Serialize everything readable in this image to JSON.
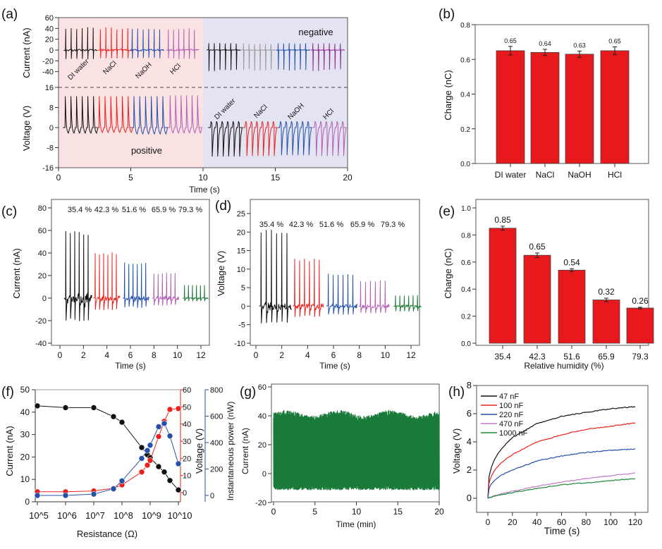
{
  "panel_labels": [
    "(a)",
    "(b)",
    "(c)",
    "(d)",
    "(e)",
    "(f)",
    "(g)",
    "(h)"
  ],
  "chart_data": [
    {
      "id": "a",
      "type": "line",
      "xlabel": "Time (s)",
      "xlim": [
        0,
        20
      ],
      "xticks": [
        0,
        5,
        10,
        15,
        20
      ],
      "top": {
        "ylabel": "Current (nA)",
        "yticks": [
          60,
          40,
          20,
          0,
          -20,
          -40
        ]
      },
      "bottom": {
        "ylabel": "Voltage (V)",
        "yticks": [
          16,
          8,
          0,
          -8,
          -16
        ]
      },
      "region_labels": {
        "positive": "positive",
        "negative": "negative"
      },
      "region_colors": {
        "positive": "#fbe3e4",
        "negative": "#e3e3f1"
      },
      "annotations": [
        "DI water",
        "NaCl",
        "NaOH",
        "HCl"
      ],
      "current_groups": [
        {
          "label": "DI water",
          "color": "#111111",
          "t": [
            0.5,
            2.4
          ],
          "peak": 43,
          "trough": -17,
          "mode": "pos"
        },
        {
          "label": "NaCl",
          "color": "#e8231f",
          "t": [
            2.9,
            4.8
          ],
          "peak": 42,
          "trough": -16,
          "mode": "pos"
        },
        {
          "label": "NaOH",
          "color": "#2450a8",
          "t": [
            5.1,
            7.0
          ],
          "peak": 41,
          "trough": -16,
          "mode": "pos"
        },
        {
          "label": "HCl",
          "color": "#b25fb5",
          "t": [
            7.6,
            9.4
          ],
          "peak": 41,
          "trough": -17,
          "mode": "pos"
        },
        {
          "label": "DI water",
          "color": "#111111",
          "t": [
            10.4,
            12.3
          ],
          "peak": 13,
          "trough": -40,
          "mode": "neg"
        },
        {
          "label": "NaCl",
          "color": "#999999",
          "t": [
            12.8,
            14.7
          ],
          "peak": 12,
          "trough": -39,
          "mode": "neg"
        },
        {
          "label": "NaOH",
          "color": "#2450a8",
          "t": [
            15.2,
            17.1
          ],
          "peak": 13,
          "trough": -39,
          "mode": "neg"
        },
        {
          "label": "HCl",
          "color": "#8b2a8f",
          "t": [
            17.6,
            19.5
          ],
          "peak": 13,
          "trough": -39,
          "mode": "neg"
        }
      ],
      "voltage_groups": [
        {
          "label": "DI water",
          "color": "#111111",
          "t": [
            0.45,
            2.4
          ],
          "peak": 12.5,
          "trough": -2.5,
          "mode": "pos"
        },
        {
          "label": "NaCl",
          "color": "#e8231f",
          "t": [
            2.8,
            4.8
          ],
          "peak": 12.5,
          "trough": -2.2,
          "mode": "pos"
        },
        {
          "label": "NaOH",
          "color": "#2450a8",
          "t": [
            5.2,
            7.2
          ],
          "peak": 12.5,
          "trough": -2.8,
          "mode": "pos"
        },
        {
          "label": "HCl",
          "color": "#b25fb5",
          "t": [
            7.7,
            9.6
          ],
          "peak": 12.8,
          "trough": -2.4,
          "mode": "pos"
        },
        {
          "label": "DI water",
          "color": "#111111",
          "t": [
            10.5,
            12.4
          ],
          "peak": 2.5,
          "trough": -11.5,
          "mode": "neg"
        },
        {
          "label": "NaCl",
          "color": "#e8231f",
          "t": [
            12.9,
            14.8
          ],
          "peak": 2.5,
          "trough": -11.3,
          "mode": "neg"
        },
        {
          "label": "NaOH",
          "color": "#2450a8",
          "t": [
            15.3,
            17.2
          ],
          "peak": 2.5,
          "trough": -11,
          "mode": "neg"
        },
        {
          "label": "HCl",
          "color": "#b25fb5",
          "t": [
            17.7,
            19.6
          ],
          "peak": 2.5,
          "trough": -11.3,
          "mode": "neg"
        }
      ]
    },
    {
      "id": "b",
      "type": "bar",
      "ylabel": "Charge (nC)",
      "ylim": [
        0,
        0.8
      ],
      "yticks": [
        "0.0",
        "0.2",
        "0.4",
        "0.6",
        "0.8"
      ],
      "categories": [
        "DI water",
        "NaCl",
        "NaOH",
        "HCl"
      ],
      "values": [
        0.65,
        0.64,
        0.63,
        0.65
      ],
      "errors": [
        0.025,
        0.018,
        0.018,
        0.022
      ],
      "data_labels": [
        "0.65",
        "0.64",
        "0.63",
        "0.65"
      ],
      "color": "#e8191d"
    },
    {
      "id": "c",
      "type": "line",
      "xlabel": "Time (s)",
      "ylabel": "Current (nA)",
      "xticks": [
        0,
        2,
        4,
        6,
        8,
        10,
        12
      ],
      "yticks": [
        -40,
        -20,
        0,
        20,
        40,
        60,
        80
      ],
      "groups": [
        {
          "label": "35.4 %",
          "color": "#111111",
          "t": [
            0.5,
            2.4
          ],
          "peak": 60,
          "trough": -22
        },
        {
          "label": "42.3 %",
          "color": "#e8231f",
          "t": [
            3.0,
            4.8
          ],
          "peak": 41,
          "trough": -11
        },
        {
          "label": "51.6 %",
          "color": "#2450a8",
          "t": [
            5.5,
            7.3
          ],
          "peak": 32,
          "trough": -9
        },
        {
          "label": "65.9 %",
          "color": "#b25fb5",
          "t": [
            8.0,
            9.8
          ],
          "peak": 23,
          "trough": -7
        },
        {
          "label": "79.3 %",
          "color": "#1f7a35",
          "t": [
            10.6,
            12.3
          ],
          "peak": 12,
          "trough": -3
        }
      ]
    },
    {
      "id": "d",
      "type": "line",
      "xlabel": "Time (s)",
      "ylabel": "Voltage (V)",
      "xticks": [
        0,
        2,
        4,
        6,
        8,
        10,
        12
      ],
      "yticks": [
        -10,
        -5,
        0,
        5,
        10,
        15,
        20,
        25
      ],
      "groups": [
        {
          "label": "35.4 %",
          "color": "#111111",
          "t": [
            0.4,
            2.4
          ],
          "peak": 21,
          "trough": -5
        },
        {
          "label": "42.3 %",
          "color": "#e8231f",
          "t": [
            3.0,
            4.9
          ],
          "peak": 13,
          "trough": -3
        },
        {
          "label": "51.6 %",
          "color": "#2450a8",
          "t": [
            5.6,
            7.5
          ],
          "peak": 9,
          "trough": -2.5
        },
        {
          "label": "65.9 %",
          "color": "#b25fb5",
          "t": [
            8.1,
            10.0
          ],
          "peak": 7,
          "trough": -2
        },
        {
          "label": "79.3 %",
          "color": "#1f7a35",
          "t": [
            10.8,
            12.5
          ],
          "peak": 3,
          "trough": -1.5
        }
      ]
    },
    {
      "id": "e",
      "type": "bar",
      "xlabel": "Relative humidity (%)",
      "ylabel": "Charge (nC)",
      "ylim": [
        0,
        1.0
      ],
      "yticks": [
        "0.0",
        "0.2",
        "0.4",
        "0.6",
        "0.8",
        "1.0"
      ],
      "categories": [
        "35.4",
        "42.3",
        "51.6",
        "65.9",
        "79.3"
      ],
      "values": [
        0.85,
        0.65,
        0.54,
        0.32,
        0.26
      ],
      "errors": [
        0.015,
        0.017,
        0.01,
        0.013,
        0.006
      ],
      "data_labels": [
        "0.85",
        "0.65",
        "0.54",
        "0.32",
        "0.26"
      ],
      "color": "#e8191d"
    },
    {
      "id": "f",
      "type": "scatter",
      "xlabel": "Resistance (Ω)",
      "xscale": "log",
      "xticks": [
        "10^5",
        "10^6",
        "10^7",
        "10^8",
        "10^9",
        "10^10"
      ],
      "ylabels": {
        "current": "Current (nA)",
        "voltage": "Voltage (V)",
        "power": "Instantaneous power (nW)"
      },
      "yticks": {
        "current": [
          0,
          10,
          20,
          30,
          40,
          50
        ],
        "voltage": [
          0,
          10,
          20,
          30,
          40,
          50,
          60
        ],
        "power": [
          0,
          200,
          400,
          600,
          800
        ]
      },
      "log10_resistance": [
        5,
        6,
        7,
        7.7,
        8,
        8.7,
        8.9,
        9,
        9.3,
        9.5,
        9.7,
        10
      ],
      "series": [
        {
          "name": "Current",
          "axis": "current",
          "color": "#111111",
          "values": [
            42.8,
            42,
            42,
            38,
            35.5,
            24.2,
            21,
            19.7,
            15.7,
            13.3,
            9.5,
            5.3
          ]
        },
        {
          "name": "Voltage",
          "axis": "voltage",
          "color": "#e8231f",
          "values": [
            0.5,
            0.5,
            1,
            2.5,
            4.5,
            12,
            16,
            18.8,
            32.7,
            41.6,
            48.5,
            49
          ]
        },
        {
          "name": "Instantaneous power",
          "axis": "power",
          "color": "#2450a8",
          "values": [
            0,
            0,
            10,
            50,
            110,
            280,
            340,
            380,
            520,
            545,
            450,
            240
          ]
        }
      ]
    },
    {
      "id": "g",
      "type": "line",
      "xlabel": "Time (min)",
      "ylabel": "Current (nA)",
      "xlim": [
        0,
        20
      ],
      "xticks": [
        0,
        5,
        10,
        15,
        20
      ],
      "yticks": [
        -20,
        0,
        20,
        40,
        60
      ],
      "color": "#1a7a3a",
      "envelope_upper": 40,
      "envelope_lower": -10
    },
    {
      "id": "h",
      "type": "line",
      "xlabel": "Time (s)",
      "ylabel": "Voltage (V)",
      "xticks": [
        0,
        20,
        40,
        60,
        80,
        100,
        120
      ],
      "yticks": [
        0,
        2,
        4,
        6,
        8
      ],
      "legend": "top-left",
      "x": [
        0,
        20,
        40,
        60,
        80,
        100,
        120
      ],
      "series": [
        {
          "name": "47 nF",
          "color": "#111111",
          "values": [
            0,
            4.3,
            5.3,
            5.8,
            6.1,
            6.35,
            6.5
          ]
        },
        {
          "name": "100 nF",
          "color": "#e8231f",
          "values": [
            0,
            3.1,
            4.0,
            4.5,
            4.9,
            5.1,
            5.35
          ]
        },
        {
          "name": "220 nF",
          "color": "#2450a8",
          "values": [
            0,
            2.0,
            2.65,
            3.0,
            3.25,
            3.4,
            3.5
          ]
        },
        {
          "name": "470 nF",
          "color": "#c07ac6",
          "values": [
            0,
            0.5,
            0.85,
            1.15,
            1.4,
            1.6,
            1.78
          ]
        },
        {
          "name": "1000 nF",
          "color": "#1f8a3a",
          "values": [
            0,
            0.4,
            0.7,
            0.95,
            1.1,
            1.25,
            1.4
          ]
        }
      ]
    }
  ]
}
